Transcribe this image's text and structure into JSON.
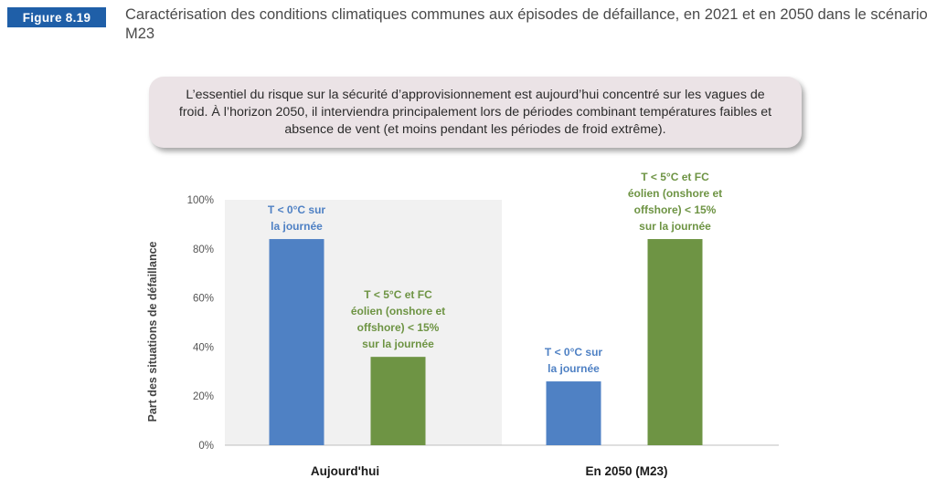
{
  "figure": {
    "badge": "Figure 8.19",
    "title": "Caractérisation des conditions climatiques communes aux épisodes de défaillance, en 2021 et en 2050 dans le scénario M23"
  },
  "callout": {
    "text": "L’essentiel du risque sur la sécurité d’approvisionnement est aujourd’hui concentré sur les vagues de froid. À l’horizon 2050, il interviendra principalement lors de périodes combinant températures faibles et absence de vent (et moins pendant les périodes de froid extrême)."
  },
  "colors": {
    "blue": "#4f81c4",
    "green": "#6e9444",
    "highlight": "#f1f1f1",
    "axis": "#bfbfbf"
  },
  "chart_data": {
    "type": "bar",
    "categories": [
      "Aujourd'hui",
      "En 2050 (M23)"
    ],
    "ylabel": "Part des situations de défaillance",
    "ylim": [
      0,
      100
    ],
    "yticks": [
      "0%",
      "20%",
      "40%",
      "60%",
      "80%",
      "100%"
    ],
    "grid": false,
    "highlighted_category": "Aujourd'hui",
    "bars": [
      {
        "category": "Aujourd'hui",
        "value": 84,
        "color": "blue",
        "label": [
          "T < 0°C sur",
          "la journée"
        ]
      },
      {
        "category": "Aujourd'hui",
        "value": 36,
        "color": "green",
        "label": [
          "T < 5°C et FC",
          "éolien (onshore et",
          "offshore) < 15%",
          "sur la journée"
        ]
      },
      {
        "category": "En 2050 (M23)",
        "value": 26,
        "color": "blue",
        "label": [
          "T < 0°C sur",
          "la journée"
        ]
      },
      {
        "category": "En 2050 (M23)",
        "value": 84,
        "color": "green",
        "label": [
          "T < 5°C et FC",
          "éolien (onshore et",
          "offshore) < 15%",
          "sur la journée"
        ]
      }
    ]
  }
}
